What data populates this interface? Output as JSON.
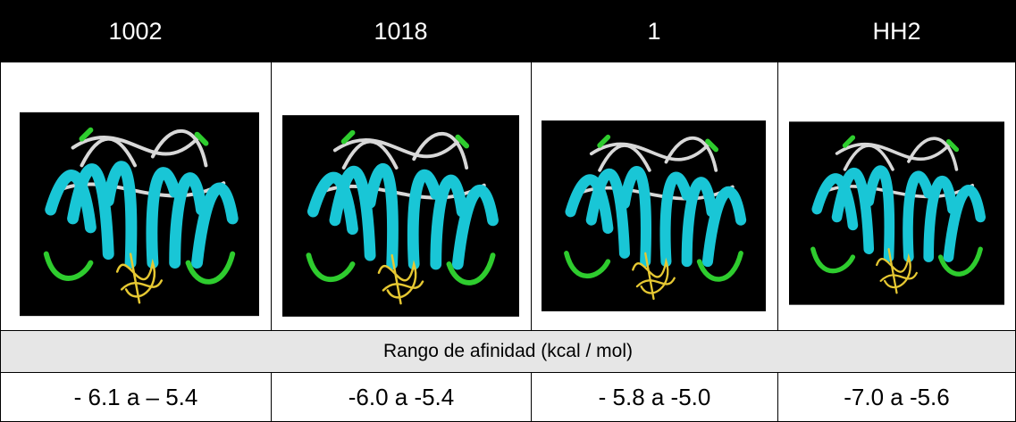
{
  "table": {
    "header": [
      "1002",
      "1018",
      "1",
      "HH2"
    ],
    "section_label": "Rango de afinidad (kcal / mol)",
    "rows": [
      [
        "- 6.1 a – 5.4",
        "-6.0 a -5.4",
        "- 5.8 a -5.0",
        "-7.0 a -5.6"
      ]
    ]
  }
}
